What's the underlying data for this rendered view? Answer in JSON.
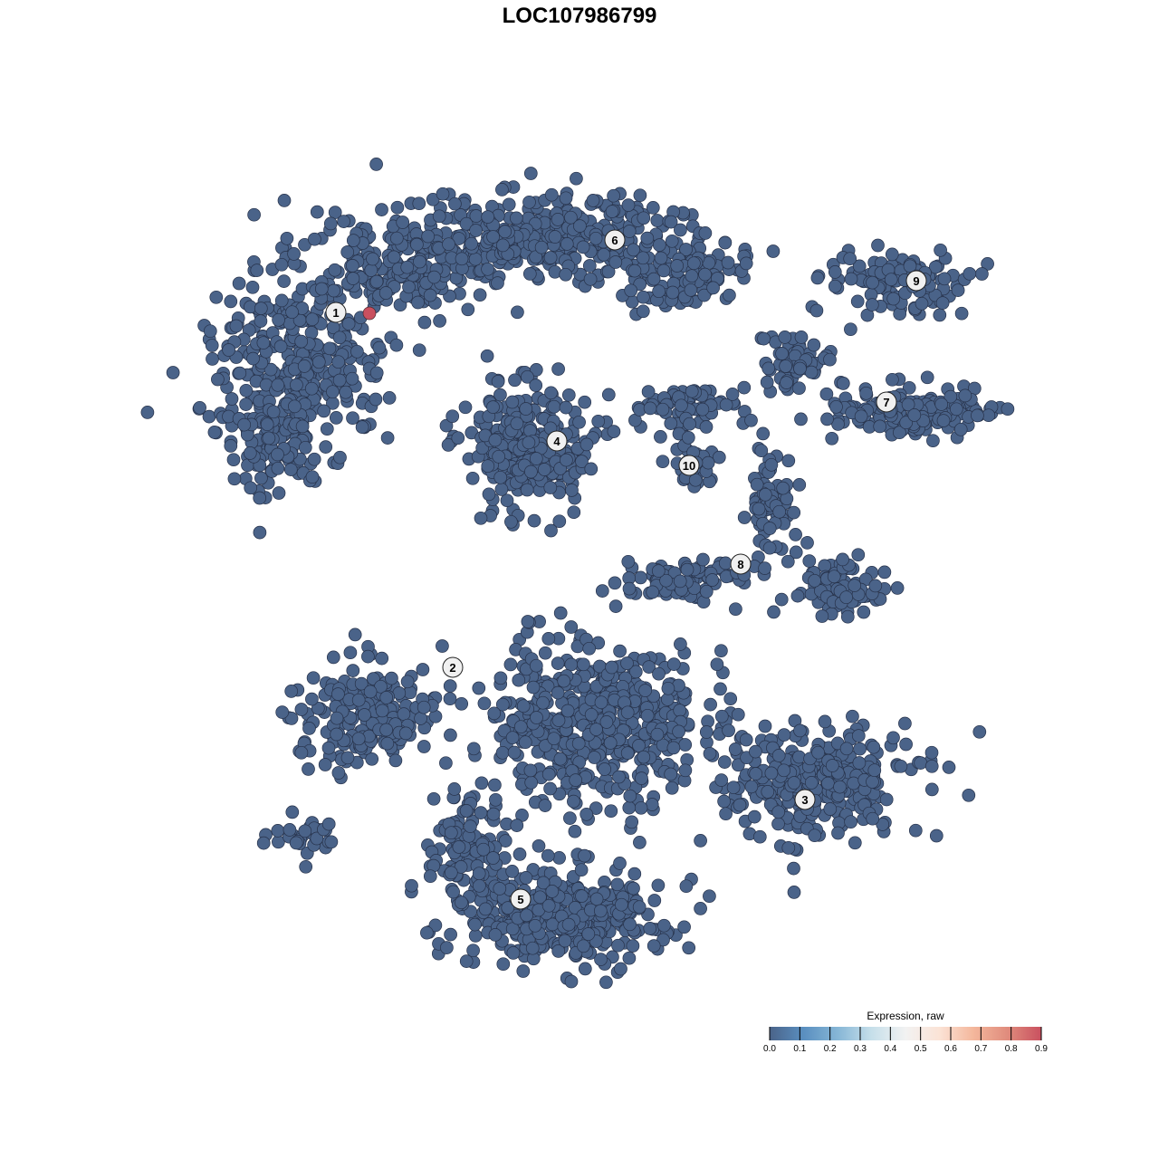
{
  "chart_data": {
    "type": "scatter",
    "title": "LOC107986799",
    "xlabel": "",
    "ylabel": "",
    "grid": false,
    "point_color_default": "#4a6389",
    "clusters": [
      {
        "label": "1",
        "x": -26.9,
        "y": 29.5
      },
      {
        "label": "2",
        "x": -14.0,
        "y": -9.7
      },
      {
        "label": "3",
        "x": 24.9,
        "y": -24.3
      },
      {
        "label": "4",
        "x": -2.5,
        "y": 15.3
      },
      {
        "label": "5",
        "x": -6.5,
        "y": -35.3
      },
      {
        "label": "6",
        "x": 3.9,
        "y": 37.5
      },
      {
        "label": "7",
        "x": 33.9,
        "y": 19.6
      },
      {
        "label": "8",
        "x": 17.8,
        "y": 1.7
      },
      {
        "label": "9",
        "x": 37.2,
        "y": 33.0
      },
      {
        "label": "10",
        "x": 12.1,
        "y": 12.6
      }
    ],
    "expressing_points": [
      {
        "x": -23.2,
        "y": 29.4,
        "value": 0.9
      }
    ],
    "background_expression": 0.0,
    "legend": {
      "title": "Expression, raw",
      "placement": "bottom-right",
      "ticks": [
        "0.0",
        "0.1",
        "0.2",
        "0.3",
        "0.4",
        "0.5",
        "0.6",
        "0.7",
        "0.8",
        "0.9"
      ],
      "range": [
        0,
        0.9
      ],
      "colors": [
        "#4a6389",
        "#5a8fc0",
        "#86b6d6",
        "#c6dfea",
        "#f2f2f2",
        "#fbe3d6",
        "#f4b79c",
        "#e08c7d",
        "#c9505f"
      ]
    }
  }
}
